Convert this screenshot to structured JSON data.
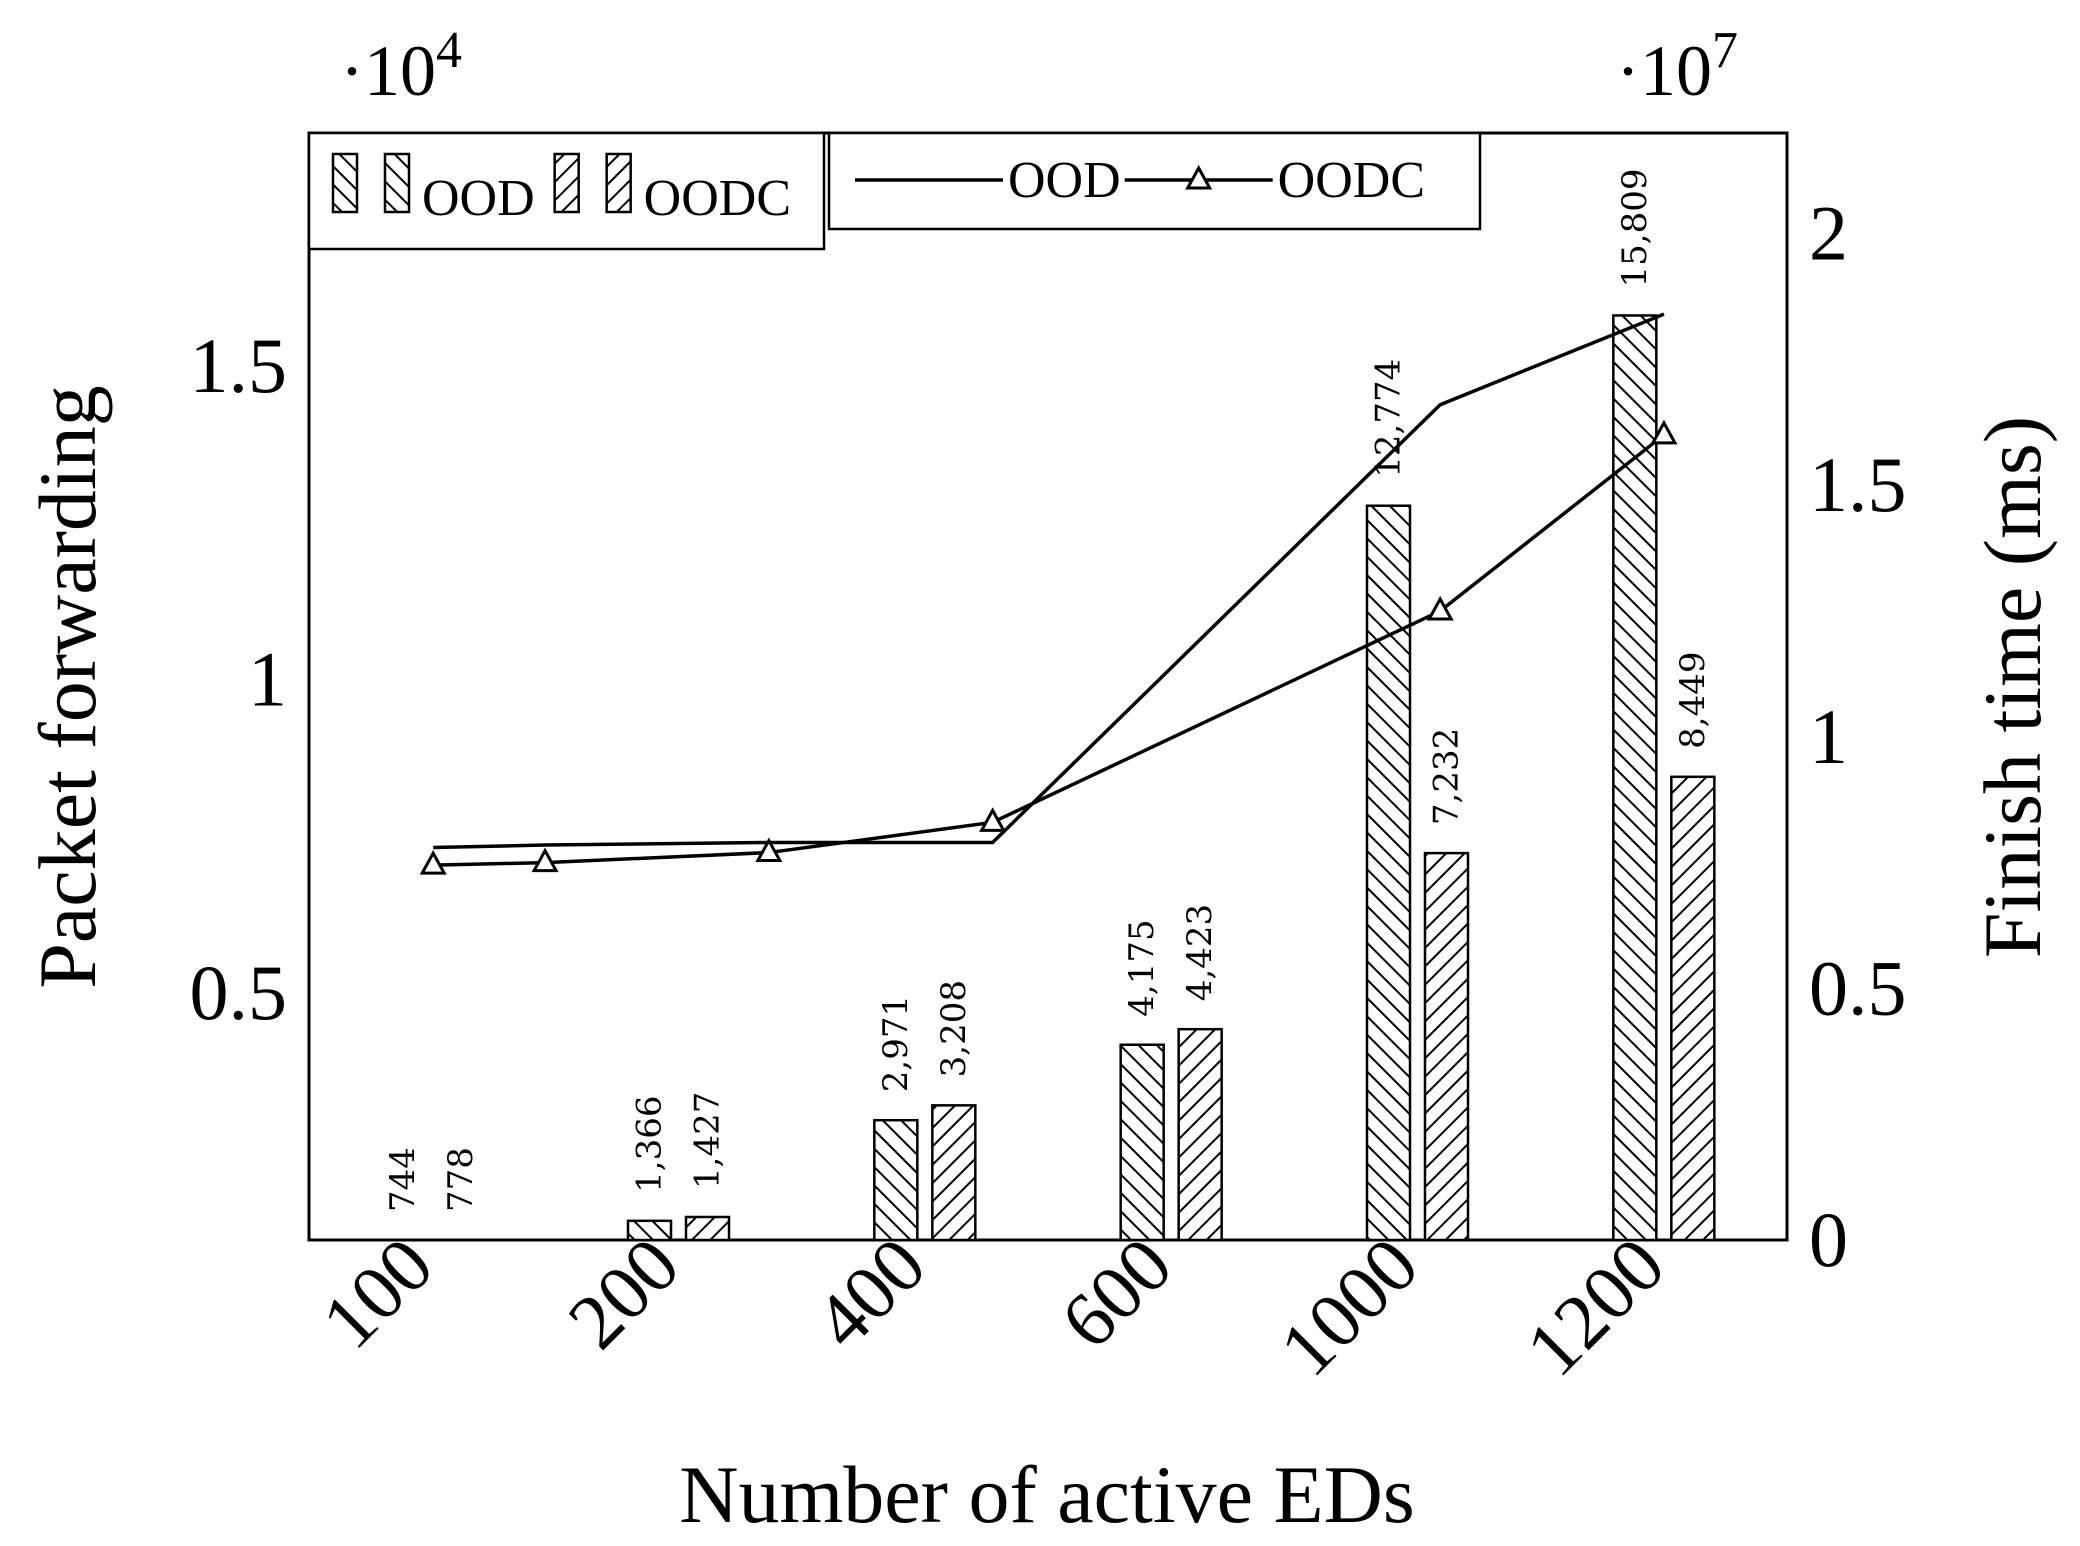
{
  "chart_data": {
    "type": "bar",
    "x_label": "Number of active EDs",
    "y_label": "Packet forwarding",
    "y2_label": "Finish time (ms)",
    "y_multiplier": {
      "base": "·10",
      "exp": "4"
    },
    "y2_multiplier": {
      "base": "·10",
      "exp": "7"
    },
    "categories": [
      "100",
      "200",
      "400",
      "600",
      "1000",
      "1200"
    ],
    "xlim": [
      -11,
      1310
    ],
    "ylim": [
      1060,
      18720
    ],
    "yticks": [
      {
        "value": 5000,
        "label": "0.5"
      },
      {
        "value": 10000,
        "label": "1"
      },
      {
        "value": 15000,
        "label": "1.5"
      }
    ],
    "y2lim": [
      0,
      22000000
    ],
    "y2ticks": [
      0,
      {
        "value": 5000000,
        "label": "0.5"
      },
      {
        "value": 10000000,
        "label": "1"
      },
      {
        "value": 15000000,
        "label": "1.5"
      },
      {
        "value": 20000000,
        "label": "2"
      }
    ],
    "series": [
      {
        "name": "OOD",
        "type": "bar",
        "color": "#000000",
        "hatch": "backslash",
        "values": [
          744,
          1366,
          2971,
          4175,
          12774,
          15809
        ],
        "value_labels": [
          "744",
          "1,366",
          "2,971",
          "4,175",
          "12,774",
          "15,809"
        ]
      },
      {
        "name": "OODC",
        "type": "bar",
        "color": "#000000",
        "hatch": "slash",
        "values": [
          778,
          1427,
          3208,
          4423,
          7232,
          8449
        ],
        "value_labels": [
          "778",
          "1,427",
          "3,208",
          "4,423",
          "7,232",
          "8,449"
        ]
      },
      {
        "name": "OOD",
        "type": "line",
        "axis": "y2",
        "color": "#000000",
        "marker": "none",
        "x": [
          100,
          200,
          400,
          600,
          1000,
          1200
        ],
        "values": [
          7800000,
          7850000,
          7900000,
          7900000,
          16600000,
          18400000
        ]
      },
      {
        "name": "OODC",
        "type": "line",
        "axis": "y2",
        "color": "#000000",
        "marker": "triangle",
        "x": [
          100,
          200,
          400,
          600,
          1000,
          1200
        ],
        "values": [
          7450000,
          7500000,
          7700000,
          8300000,
          12500000,
          16000000
        ]
      }
    ]
  }
}
